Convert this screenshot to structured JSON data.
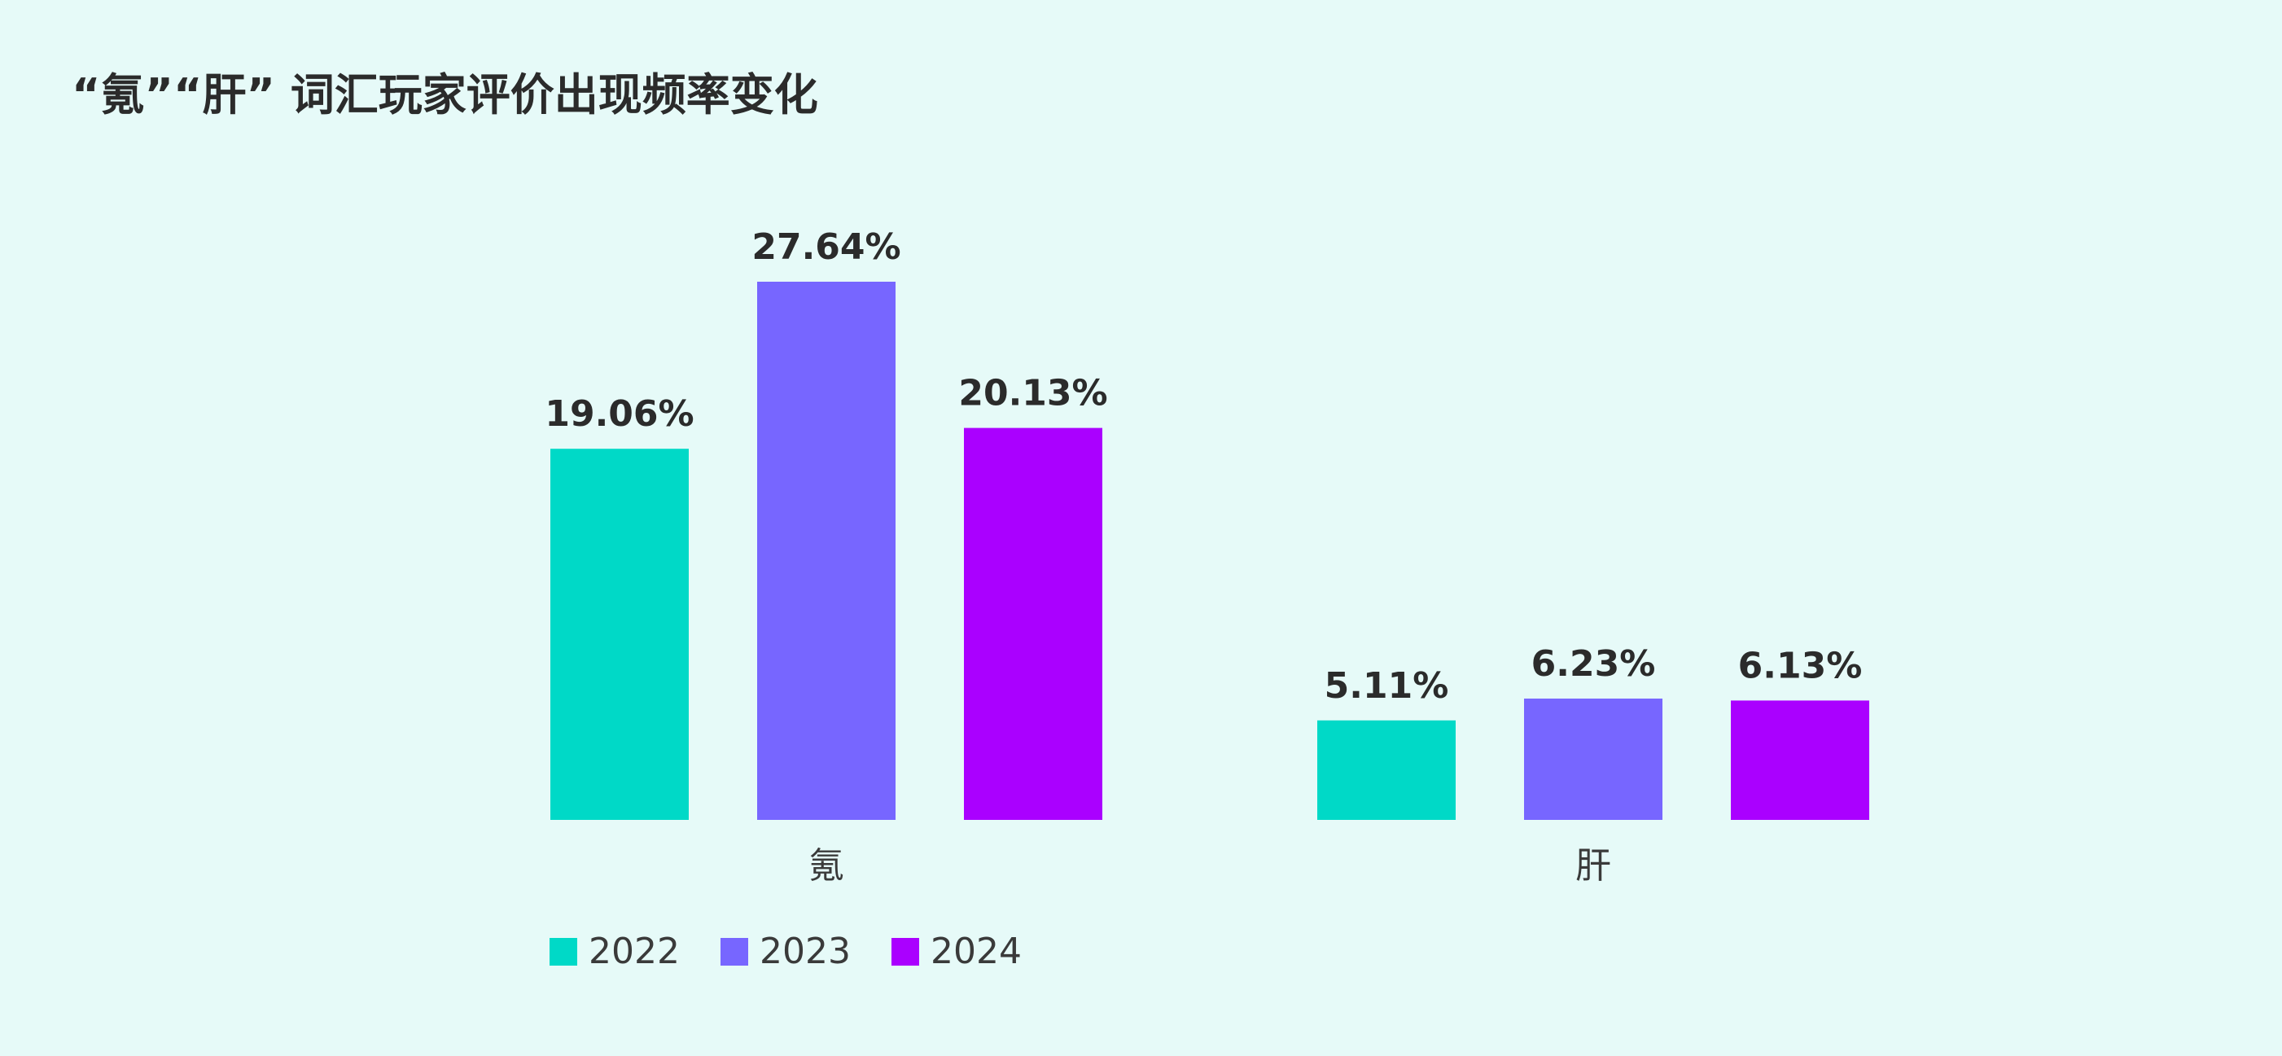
{
  "title": "“氪”“肝” 词汇玩家评价出现频率变化",
  "chart_data": {
    "type": "bar",
    "title": "“氪”“肝” 词汇玩家评价出现频率变化",
    "categories": [
      "氪",
      "肝"
    ],
    "series": [
      {
        "name": "2022",
        "color": "#00d9c7",
        "values": [
          19.06,
          5.11
        ],
        "labels": [
          "19.06%",
          "5.11%"
        ]
      },
      {
        "name": "2023",
        "color": "#7766ff",
        "values": [
          27.64,
          6.23
        ],
        "labels": [
          "27.64%",
          "6.23%"
        ]
      },
      {
        "name": "2024",
        "color": "#aa00ff",
        "values": [
          20.13,
          6.13
        ],
        "labels": [
          "20.13%",
          "6.13%"
        ]
      }
    ],
    "xlabel": "",
    "ylabel": "",
    "ylim": [
      0,
      27.64
    ],
    "grid": false,
    "legend": "bottom-left"
  }
}
